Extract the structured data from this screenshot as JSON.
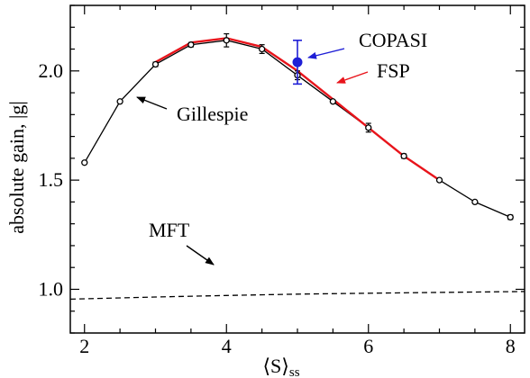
{
  "chart_data": {
    "type": "line",
    "xlabel": "⟨S⟩",
    "xlabel_sub": "ss",
    "ylabel": "absolute gain, |g|",
    "xlim": [
      1.8,
      8.2
    ],
    "ylim": [
      0.8,
      2.3
    ],
    "xticks": [
      2,
      4,
      6,
      8
    ],
    "xtick_labels": [
      "2",
      "4",
      "6",
      "8"
    ],
    "yticks": [
      1.0,
      1.5,
      2.0
    ],
    "ytick_labels": [
      "1.0",
      "1.5",
      "2.0"
    ],
    "grid": false,
    "legend": "none (inline annotations)",
    "series": [
      {
        "name": "Gillespie",
        "style": "line with open circle markers and error bars",
        "color": "#000000",
        "x": [
          2.0,
          2.5,
          3.0,
          3.5,
          4.0,
          4.5,
          5.0,
          5.5,
          6.0,
          6.5,
          7.0,
          7.5,
          8.0
        ],
        "y": [
          1.58,
          1.86,
          2.03,
          2.12,
          2.14,
          2.1,
          1.98,
          1.86,
          1.74,
          1.61,
          1.5,
          1.4,
          1.33
        ],
        "err": [
          0.0,
          0.0,
          0.01,
          0.01,
          0.03,
          0.02,
          0.02,
          0.0,
          0.02,
          0.01,
          0.0,
          0.0,
          0.01
        ]
      },
      {
        "name": "FSP",
        "style": "solid line",
        "color": "#e8141b",
        "x": [
          3.0,
          3.5,
          4.0,
          4.5,
          5.0,
          5.5,
          6.0,
          6.5,
          7.0
        ],
        "y": [
          2.04,
          2.13,
          2.15,
          2.11,
          2.0,
          1.87,
          1.74,
          1.61,
          1.5
        ]
      },
      {
        "name": "COPASI",
        "style": "filled circle with error bar",
        "color": "#1f1fd6",
        "x": [
          5.0
        ],
        "y": [
          2.04
        ],
        "err": [
          0.1
        ]
      },
      {
        "name": "MFT",
        "style": "dashed line",
        "color": "#000000",
        "x": [
          1.8,
          3.0,
          4.0,
          5.0,
          6.0,
          7.0,
          8.2
        ],
        "y": [
          0.955,
          0.965,
          0.972,
          0.978,
          0.982,
          0.986,
          0.99
        ]
      }
    ],
    "annotations": [
      {
        "text": "COPASI",
        "color": "#1f1fd6",
        "target": "COPASI"
      },
      {
        "text": "FSP",
        "color": "#e8141b",
        "target": "FSP"
      },
      {
        "text": "Gillespie",
        "color": "#000000",
        "target": "Gillespie"
      },
      {
        "text": "MFT",
        "color": "#000000",
        "target": "MFT"
      }
    ]
  }
}
